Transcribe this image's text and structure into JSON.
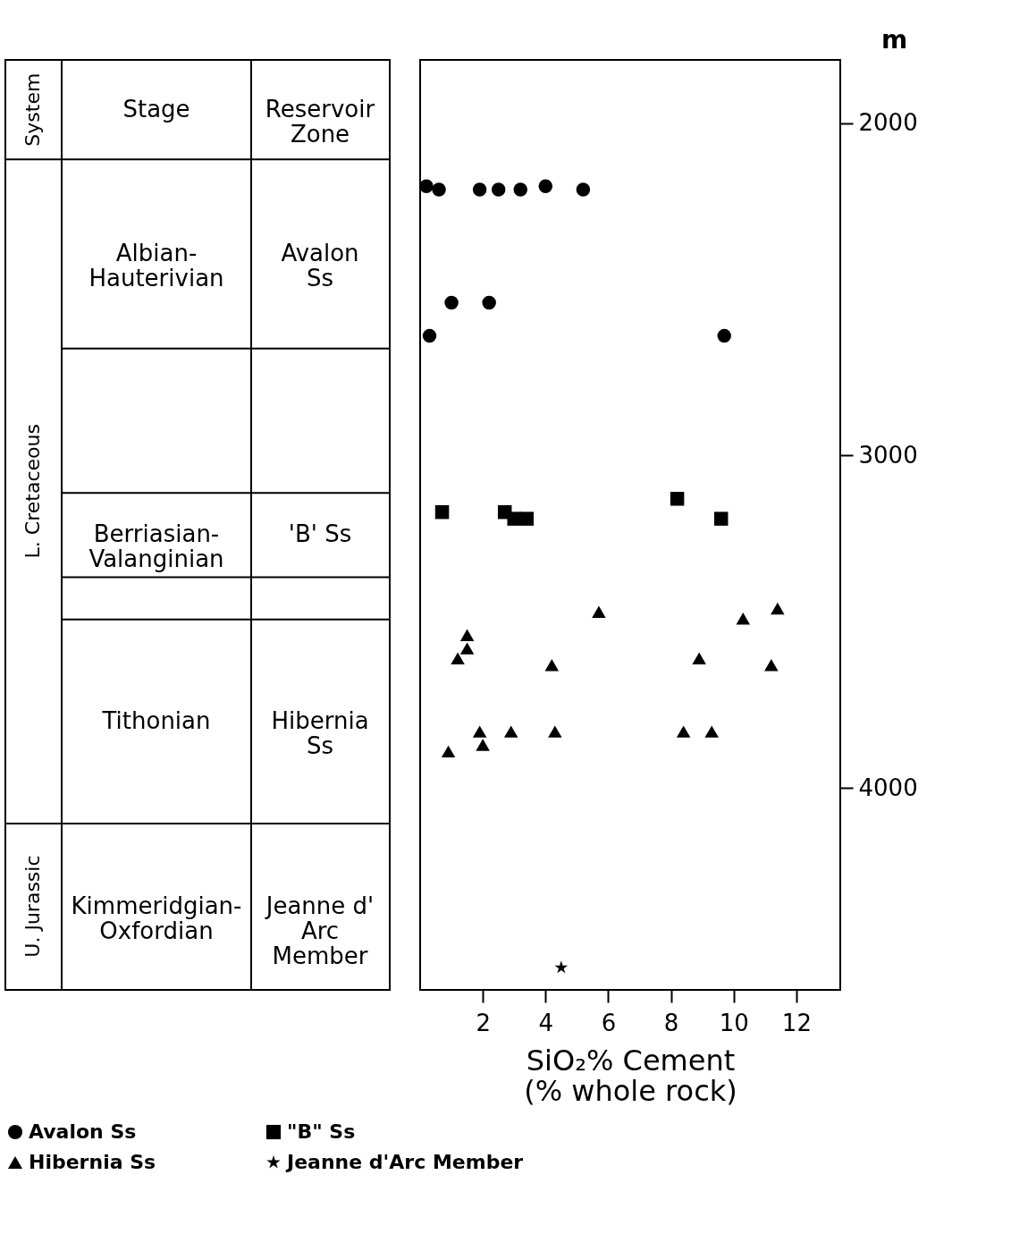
{
  "chart_data": [
    {
      "type": "other",
      "annotations": [
        "System",
        "Stage",
        "Reservoir\nZone",
        "L. Cretaceous",
        "U. Jurassic",
        "Albian-\nHauterivian",
        "Avalon\nSs",
        "Berriasian-\nValanginian",
        "'B' Ss",
        "Tithonian",
        "Hibernia\nSs",
        "Kimmeridgian-\nOxfordian",
        "Jeanne d'\nArc\nMember"
      ]
    },
    {
      "type": "scatter",
      "xlabel": "SiO₂% Cement\n(% whole rock)",
      "ylabel": "m",
      "xlim": [
        0,
        13.4
      ],
      "xticks": [
        2,
        4,
        6,
        8,
        10,
        12
      ],
      "ylim": [
        4607,
        1810
      ],
      "yticks": [
        2000,
        3000,
        4000
      ],
      "grid": false,
      "legend": "bottom",
      "series": [
        {
          "name": "Avalon Ss",
          "color": "#000000",
          "marker": "circle",
          "x": [
            0.2,
            0.6,
            1.9,
            2.5,
            3.2,
            4.0,
            5.2,
            1.0,
            2.2,
            0.3,
            9.7
          ],
          "values": [
            2190,
            2200,
            2200,
            2200,
            2200,
            2190,
            2200,
            2540,
            2540,
            2640,
            2640
          ]
        },
        {
          "name": "\"B\" Ss",
          "color": "#000000",
          "marker": "square",
          "x": [
            0.7,
            2.7,
            3.0,
            3.4,
            8.2,
            9.6
          ],
          "values": [
            3170,
            3170,
            3190,
            3190,
            3130,
            3190
          ]
        },
        {
          "name": "Hibernia Ss",
          "color": "#000000",
          "marker": "triangle",
          "x": [
            5.7,
            1.5,
            1.2,
            1.5,
            4.2,
            8.9,
            10.3,
            11.4,
            11.2,
            0.9,
            1.9,
            2.0,
            2.9,
            4.3,
            8.4,
            9.3
          ],
          "values": [
            3470,
            3540,
            3610,
            3580,
            3630,
            3610,
            3490,
            3460,
            3630,
            3890,
            3830,
            3870,
            3830,
            3830,
            3830,
            3830
          ]
        },
        {
          "name": "Jeanne d'Arc Member",
          "color": "#000000",
          "marker": "star",
          "x": [
            4.5
          ],
          "values": [
            4540
          ]
        }
      ]
    }
  ]
}
